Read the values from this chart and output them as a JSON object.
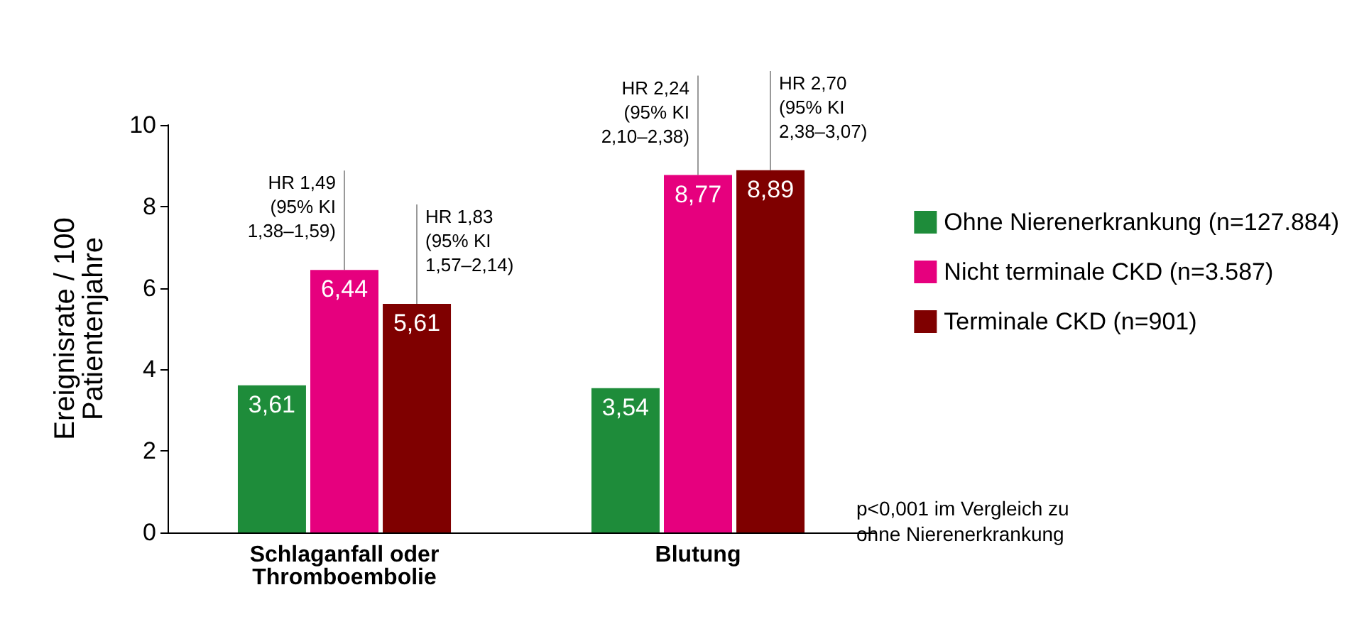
{
  "chart_data": {
    "type": "bar",
    "ylabel": "Ereignisrate / 100\nPatientenjahre",
    "categories": [
      "Schlaganfall oder\nThromboembolie",
      "Blutung"
    ],
    "series": [
      {
        "name": "Ohne Nierenerkrankung (n=127.884)",
        "color": "#1e8c3a",
        "values": [
          3.61,
          3.54
        ],
        "value_labels": [
          "3,61",
          "3,54"
        ]
      },
      {
        "name": "Nicht terminale CKD (n=3.587)",
        "color": "#e6007e",
        "values": [
          6.44,
          8.77
        ],
        "value_labels": [
          "6,44",
          "8,77"
        ]
      },
      {
        "name": "Terminale CKD (n=901)",
        "color": "#7f0000",
        "values": [
          5.61,
          8.89
        ],
        "value_labels": [
          "5,61",
          "8,89"
        ]
      }
    ],
    "ylim": [
      0,
      10
    ],
    "yticks": [
      0,
      2,
      4,
      6,
      8,
      10
    ],
    "grid": false,
    "legend": "right",
    "annotations": [
      {
        "text": "HR 1,49\n(95% KI\n1,38–1,59)",
        "x": "Schlaganfall oder\nThromboembolie",
        "y": 6.44
      },
      "HR 1,83\n(95% KI\n1,57–2,14)",
      {
        "text": "HR 2,24\n(95% KI\n2,10–2,38)",
        "x": "Blutung",
        "y": 8.77
      },
      "HR 2,70\n(95% KI\n2,38–3,07)",
      "p<0,001 im Vergleich zu\nohne Nierenerkrankung"
    ]
  }
}
